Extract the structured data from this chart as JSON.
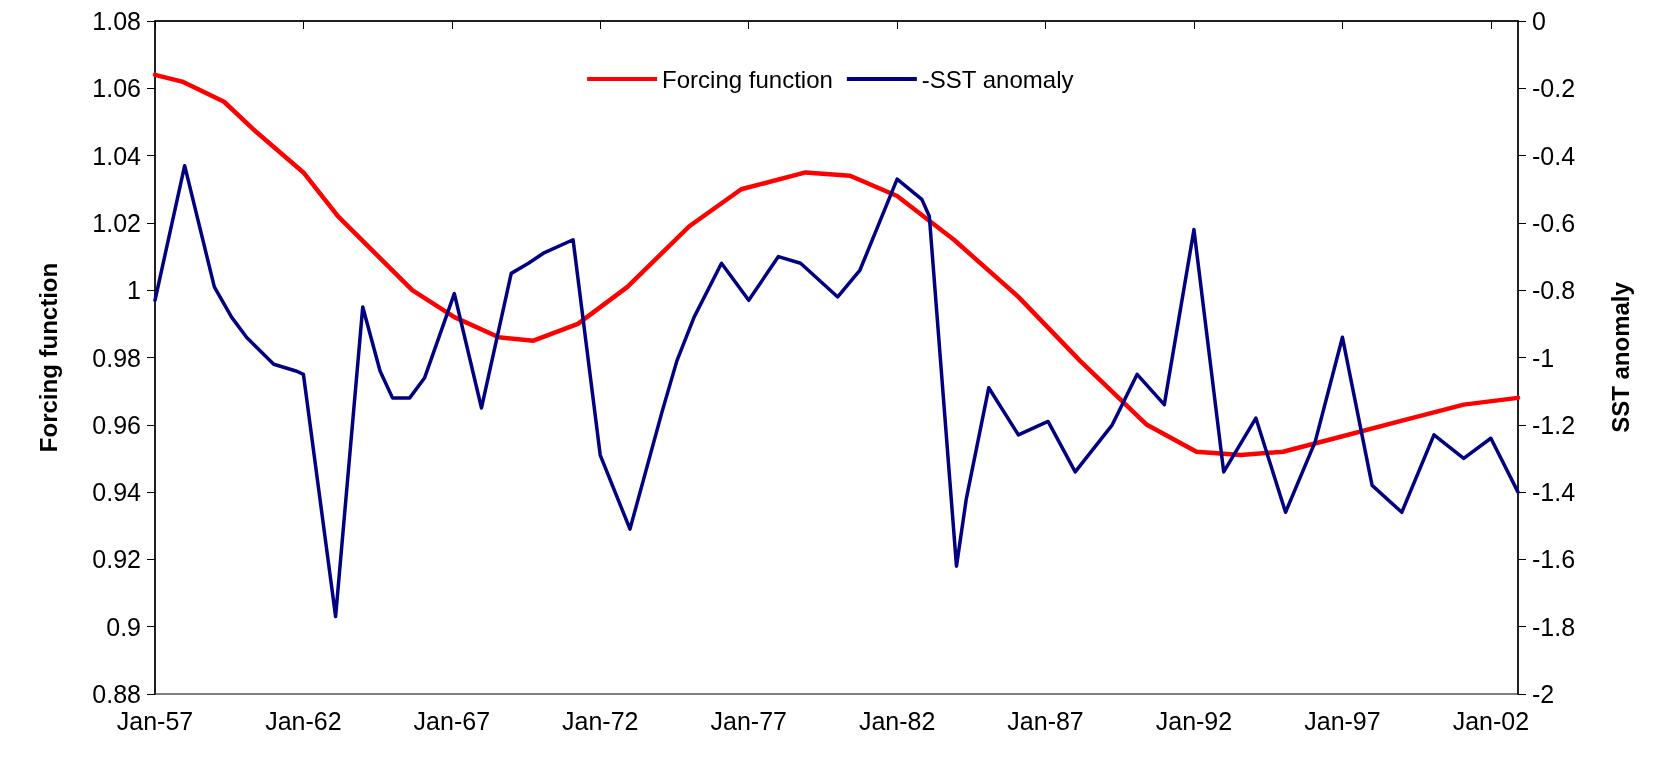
{
  "chart_data": {
    "type": "line",
    "ylabel": "Forcing function",
    "y2label": "SST anomaly",
    "xlim": [
      "1957-01",
      "2002-12"
    ],
    "xticks": [
      {
        "value": "1957-01",
        "label": "Jan-57"
      },
      {
        "value": "1962-01",
        "label": "Jan-62"
      },
      {
        "value": "1967-01",
        "label": "Jan-67"
      },
      {
        "value": "1972-01",
        "label": "Jan-72"
      },
      {
        "value": "1977-01",
        "label": "Jan-77"
      },
      {
        "value": "1982-01",
        "label": "Jan-82"
      },
      {
        "value": "1987-01",
        "label": "Jan-87"
      },
      {
        "value": "1992-01",
        "label": "Jan-92"
      },
      {
        "value": "1997-01",
        "label": "Jan-97"
      },
      {
        "value": "2002-01",
        "label": "Jan-02"
      }
    ],
    "ylim": [
      0.88,
      1.08
    ],
    "yticks": [
      0.88,
      0.9,
      0.92,
      0.94,
      0.96,
      0.98,
      1,
      1.02,
      1.04,
      1.06,
      1.08
    ],
    "y2lim": [
      -2,
      0
    ],
    "y2ticks": [
      -2,
      -1.8,
      -1.6,
      -1.4,
      -1.2,
      -1,
      -0.8,
      -0.6,
      -0.4,
      -0.2,
      0
    ],
    "grid": false,
    "legend": "top",
    "marker": "none",
    "line_style": "solid",
    "series": [
      {
        "name": "Forcing function",
        "color": "#ff0000",
        "x": [
          "1957-01",
          "1957-12",
          "1959-05",
          "1960-06",
          "1962-01",
          "1963-03",
          "1965-09",
          "1967-02",
          "1968-08",
          "1969-10",
          "1971-04",
          "1972-12",
          "1975-01",
          "1976-10",
          "1978-12",
          "1980-06",
          "1982-01",
          "1983-12",
          "1986-02",
          "1988-03",
          "1990-06",
          "1992-02",
          "1993-08",
          "1995-01",
          "1996-10",
          "1998-12",
          "2001-02",
          "2002-12"
        ],
        "values": [
          1.064,
          1.062,
          1.056,
          1.047,
          1.035,
          1.022,
          1.0,
          0.992,
          0.986,
          0.985,
          0.99,
          1.001,
          1.019,
          1.03,
          1.035,
          1.034,
          1.028,
          1.015,
          0.998,
          0.979,
          0.96,
          0.952,
          0.951,
          0.952,
          0.956,
          0.961,
          0.966,
          0.968
        ]
      },
      {
        "name": "-SST anomaly",
        "color": "#000080",
        "axis": "y2",
        "x": [
          "1957-01",
          "1958-01",
          "1959-01",
          "1959-08",
          "1960-02",
          "1961-01",
          "1961-10",
          "1962-01",
          "1963-02",
          "1964-01",
          "1964-08",
          "1965-01",
          "1965-08",
          "1966-02",
          "1967-02",
          "1968-01",
          "1969-01",
          "1969-08",
          "1970-02",
          "1971-02",
          "1972-01",
          "1973-01",
          "1974-02",
          "1974-08",
          "1975-03",
          "1976-02",
          "1977-01",
          "1978-01",
          "1978-10",
          "1980-01",
          "1980-10",
          "1982-01",
          "1982-11",
          "1983-02",
          "1984-01",
          "1984-05",
          "1985-02",
          "1986-02",
          "1987-02",
          "1988-01",
          "1989-04",
          "1990-02",
          "1991-01",
          "1992-01",
          "1993-01",
          "1994-02",
          "1995-02",
          "1996-02",
          "1997-01",
          "1998-01",
          "1999-01",
          "2000-02",
          "2001-02",
          "2002-01",
          "2002-12"
        ],
        "values": [
          -0.83,
          -0.43,
          -0.79,
          -0.88,
          -0.94,
          -1.02,
          -1.04,
          -1.05,
          -1.77,
          -0.85,
          -1.04,
          -1.12,
          -1.12,
          -1.06,
          -0.81,
          -1.15,
          -0.75,
          -0.72,
          -0.69,
          -0.65,
          -1.29,
          -1.51,
          -1.16,
          -1.01,
          -0.88,
          -0.72,
          -0.83,
          -0.7,
          -0.72,
          -0.82,
          -0.74,
          -0.47,
          -0.53,
          -0.58,
          -1.62,
          -1.42,
          -1.09,
          -1.23,
          -1.19,
          -1.34,
          -1.2,
          -1.05,
          -1.14,
          -0.62,
          -1.34,
          -1.18,
          -1.46,
          -1.25,
          -0.94,
          -1.38,
          -1.46,
          -1.23,
          -1.3,
          -1.24,
          -1.4
        ]
      }
    ]
  }
}
